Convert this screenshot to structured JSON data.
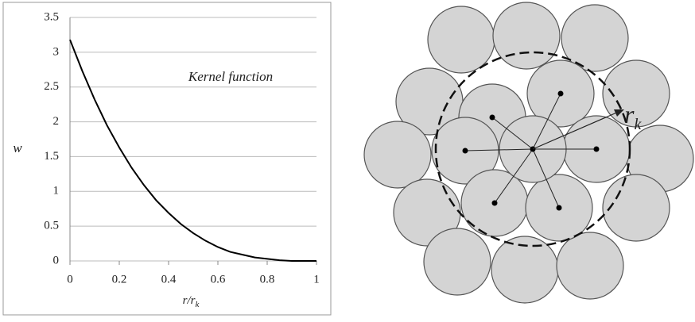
{
  "chart_data": {
    "type": "line",
    "annotation": "Kernel function",
    "y_label": "w",
    "x_label": {
      "main": "r/r",
      "sub": "k"
    },
    "x": [
      0,
      0.05,
      0.1,
      0.15,
      0.2,
      0.25,
      0.3,
      0.35,
      0.4,
      0.45,
      0.5,
      0.55,
      0.6,
      0.65,
      0.7,
      0.75,
      0.8,
      0.85,
      0.9,
      0.95,
      1
    ],
    "values": [
      3.18,
      2.73,
      2.32,
      1.95,
      1.63,
      1.34,
      1.09,
      0.87,
      0.69,
      0.53,
      0.4,
      0.29,
      0.2,
      0.13,
      0.09,
      0.05,
      0.03,
      0.01,
      0.0,
      0.0,
      0.0
    ],
    "color": "#000000",
    "xlim": [
      0,
      1
    ],
    "xticks": [
      0,
      0.2,
      0.4,
      0.6,
      0.8,
      1
    ],
    "ylim": [
      0,
      3.5
    ],
    "yticks": [
      0,
      0.5,
      1,
      1.5,
      2,
      2.5,
      3,
      3.5
    ],
    "grid": true
  },
  "diagram": {
    "radius_label": {
      "main": "r",
      "sub": "k"
    }
  }
}
